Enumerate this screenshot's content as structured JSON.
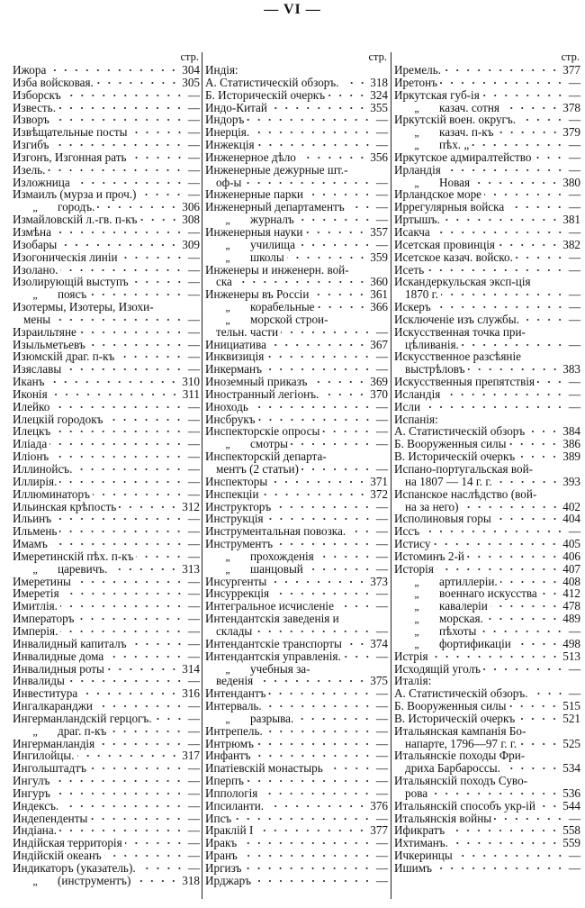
{
  "page_title": "— VI —",
  "page_header_label": "стр.",
  "columns": [
    [
      {
        "t": "Ижора",
        "p": "304"
      },
      {
        "t": "Изба войсковая.",
        "p": "305"
      },
      {
        "t": "Изборскъ",
        "p": "—"
      },
      {
        "t": "Известь.",
        "p": "—"
      },
      {
        "t": "Изворъ",
        "p": "—"
      },
      {
        "t": "Извѣщательные посты",
        "p": "—"
      },
      {
        "t": "Изгибъ",
        "p": "—"
      },
      {
        "t": "Изгонъ, Изгонная рать",
        "p": "—"
      },
      {
        "t": "Изель.",
        "p": "—"
      },
      {
        "t": "Изложница",
        "p": "—"
      },
      {
        "t": "Измаилъ (мурза и проч.)",
        "p": "—"
      },
      {
        "t": "городъ.",
        "p": "306",
        "d": "„"
      },
      {
        "t": "Измайловскій л.-гв. п-къ",
        "p": "308"
      },
      {
        "t": "Измѣна",
        "p": "—"
      },
      {
        "t": "Изобары",
        "p": "309"
      },
      {
        "t": "Изогоническія линіи",
        "p": "—"
      },
      {
        "t": "Изолано.",
        "p": "—"
      },
      {
        "t": "Изолирующій выступъ",
        "p": "—"
      },
      {
        "t": "поясъ",
        "p": "—",
        "d": "„"
      },
      {
        "t": "Изотермы, Изотеры, Изохи-"
      },
      {
        "t": "мены",
        "p": "—",
        "c": true
      },
      {
        "t": "Израильтяне",
        "p": "—"
      },
      {
        "t": "Изыльметьевъ",
        "p": "—"
      },
      {
        "t": "Изюмскій драг. п-къ",
        "p": "—"
      },
      {
        "t": "Изяславы",
        "p": "—"
      },
      {
        "t": "Иканъ",
        "p": "310"
      },
      {
        "t": "Иконія",
        "p": "311"
      },
      {
        "t": "Илейко",
        "p": "—"
      },
      {
        "t": "Илецкій городокъ",
        "p": "—"
      },
      {
        "t": "Илецкъ",
        "p": "—"
      },
      {
        "t": "Иліада",
        "p": "—"
      },
      {
        "t": "Иліонъ",
        "p": "—"
      },
      {
        "t": "Иллинойсъ.",
        "p": "—"
      },
      {
        "t": "Иллирія.",
        "p": "—"
      },
      {
        "t": "Иллюминаторъ",
        "p": "—"
      },
      {
        "t": "Ильинская крѣпость",
        "p": "312"
      },
      {
        "t": "Ильинъ",
        "p": "—"
      },
      {
        "t": "Ильмень",
        "p": "—"
      },
      {
        "t": "Имамъ",
        "p": "—"
      },
      {
        "t": "Имеретинскій пѣх. п-къ",
        "p": "—"
      },
      {
        "t": "царевичъ.",
        "p": "313",
        "d": "„"
      },
      {
        "t": "Имеретины",
        "p": "—"
      },
      {
        "t": "Имеретія",
        "p": "—"
      },
      {
        "t": "Имитлія.",
        "p": "—"
      },
      {
        "t": "Императоръ",
        "p": "—"
      },
      {
        "t": "Имперія.",
        "p": "—"
      },
      {
        "t": "Инвалидный капиталъ",
        "p": "—"
      },
      {
        "t": "Инвалидные дома",
        "p": "—"
      },
      {
        "t": "Инвалидныя роты",
        "p": "314"
      },
      {
        "t": "Инвалиды",
        "p": "—"
      },
      {
        "t": "Инвеститура",
        "p": "316"
      },
      {
        "t": "Ингалкаранджи",
        "p": "—"
      },
      {
        "t": "Ингерманландскій герцогъ.",
        "p": "—"
      },
      {
        "t": "драг. п-къ",
        "p": "—",
        "d": "„"
      },
      {
        "t": "Ингерманландія",
        "p": "—"
      },
      {
        "t": "Ингилойцы.",
        "p": "317"
      },
      {
        "t": "Ингольштадтъ",
        "p": "—"
      },
      {
        "t": "Ингулъ",
        "p": "—"
      },
      {
        "t": "Ингуръ",
        "p": "—"
      },
      {
        "t": "Индексъ.",
        "p": "—"
      },
      {
        "t": "Индепенденты",
        "p": "—"
      },
      {
        "t": "Индіана.",
        "p": "—"
      },
      {
        "t": "Индійская территорія",
        "p": "—"
      },
      {
        "t": "Индійскій океанъ",
        "p": "—"
      },
      {
        "t": "Индикаторъ (указатель).",
        "p": "—"
      },
      {
        "t": "(инструментъ)",
        "p": "318",
        "d": "„"
      }
    ],
    [
      {
        "t": "Индія:"
      },
      {
        "t": "А. Статистическій обзоръ.",
        "p": "318"
      },
      {
        "t": "Б. Историческій очеркъ",
        "p": "324"
      },
      {
        "t": "Индо-Китай",
        "p": "355"
      },
      {
        "t": "Индоръ",
        "p": "—"
      },
      {
        "t": "Инерція.",
        "p": "—"
      },
      {
        "t": "Инжекція",
        "p": "—"
      },
      {
        "t": "Инженерное дѣло",
        "p": "356"
      },
      {
        "t": "Инженерные дежурные шт.-"
      },
      {
        "t": "оф-ы",
        "p": "—",
        "c": true
      },
      {
        "t": "Инженерные парки",
        "p": "—"
      },
      {
        "t": "Инженерный департаментъ",
        "p": "—"
      },
      {
        "t": "журналъ",
        "p": "—",
        "d": "„"
      },
      {
        "t": "Инженерныя науки",
        "p": "357"
      },
      {
        "t": "училища",
        "p": "—",
        "d": "„"
      },
      {
        "t": "школы",
        "p": "359",
        "d": "„"
      },
      {
        "t": "Инженеры и инженерн. вой-"
      },
      {
        "t": "ска",
        "p": "360",
        "c": true
      },
      {
        "t": "Инженеры въ Россіи",
        "p": "361"
      },
      {
        "t": "корабельные",
        "p": "366",
        "d": "„"
      },
      {
        "t": "морской строи-",
        "d": "„"
      },
      {
        "t": "тельн. части",
        "p": "—",
        "c": true
      },
      {
        "t": "Инициатива",
        "p": "367"
      },
      {
        "t": "Инквизиція",
        "p": "—"
      },
      {
        "t": "Инкерманъ",
        "p": "—"
      },
      {
        "t": "Иноземный приказъ",
        "p": "369"
      },
      {
        "t": "Иностранный легіонъ.",
        "p": "370"
      },
      {
        "t": "Иноходь",
        "p": "—"
      },
      {
        "t": "Инсбрукъ",
        "p": "—"
      },
      {
        "t": "Инспекторскіе опросы",
        "p": "—"
      },
      {
        "t": "смотры",
        "p": "—",
        "d": "„"
      },
      {
        "t": "Инспекторскій департа-"
      },
      {
        "t": "ментъ (2 статьи)",
        "p": "—",
        "c": true
      },
      {
        "t": "Инспекторы",
        "p": "371"
      },
      {
        "t": "Инспекціи",
        "p": "372"
      },
      {
        "t": "Инструкторъ",
        "p": "—"
      },
      {
        "t": "Инструкція",
        "p": "—"
      },
      {
        "t": "Инструментальная повозка.",
        "p": "—"
      },
      {
        "t": "Инструментъ",
        "p": "—"
      },
      {
        "t": "прохожденія",
        "p": "—",
        "d": "„"
      },
      {
        "t": "шанцовый",
        "p": "—",
        "d": "„"
      },
      {
        "t": "Инсургенты",
        "p": "373"
      },
      {
        "t": "Инсуррекція",
        "p": "—"
      },
      {
        "t": "Интегральное исчисленіе",
        "p": "—"
      },
      {
        "t": "Интендантскія заведенія и"
      },
      {
        "t": "склады",
        "p": "—",
        "c": true
      },
      {
        "t": "Интендантскіе транспорты",
        "p": "374"
      },
      {
        "t": "Интендантскія управленія.",
        "p": "—"
      },
      {
        "t": "учебныя за-",
        "d": "„"
      },
      {
        "t": "веденія",
        "p": "375",
        "c": true
      },
      {
        "t": "Интендантъ",
        "p": "—"
      },
      {
        "t": "Интерваль.",
        "p": "—"
      },
      {
        "t": "разрыва.",
        "p": "—",
        "d": "„"
      },
      {
        "t": "Интрепель.",
        "p": "—"
      },
      {
        "t": "Интрюмъ",
        "p": "—"
      },
      {
        "t": "Инфантъ",
        "p": "—"
      },
      {
        "t": "Ипатіевскій монастырь",
        "p": "—"
      },
      {
        "t": "Иперпъ",
        "p": "—"
      },
      {
        "t": "Иппологія",
        "p": "—"
      },
      {
        "t": "Ипсиланти.",
        "p": "376"
      },
      {
        "t": "Ипсъ",
        "p": "—"
      },
      {
        "t": "Ираклій I",
        "p": "377"
      },
      {
        "t": "Иракъ",
        "p": "—"
      },
      {
        "t": "Иранъ",
        "p": "—"
      },
      {
        "t": "Иргизъ",
        "p": "—"
      },
      {
        "t": "Ирджаръ",
        "p": "—"
      }
    ],
    [
      {
        "t": "Иремель.",
        "p": "377"
      },
      {
        "t": "Иретонъ",
        "p": "—"
      },
      {
        "t": "Иркутская губ-ія",
        "p": "—"
      },
      {
        "t": "казач. сотня",
        "p": "378",
        "d": "„"
      },
      {
        "t": "Иркутскій воен. округъ.",
        "p": "—"
      },
      {
        "t": "казач. п-къ",
        "p": "379",
        "d": "„"
      },
      {
        "t": "пѣх.   „",
        "p": "—",
        "d": "„"
      },
      {
        "t": "Иркутское адмиралтейство",
        "p": "—"
      },
      {
        "t": "Ирландія",
        "p": "—"
      },
      {
        "t": "Новая",
        "p": "380",
        "d": "„"
      },
      {
        "t": "Ирландское море",
        "p": "—"
      },
      {
        "t": "Иррегулярныя войска",
        "p": "—"
      },
      {
        "t": "Иртышъ.",
        "p": "381"
      },
      {
        "t": "Исакча",
        "p": "—"
      },
      {
        "t": "Исетская провинція",
        "p": "382"
      },
      {
        "t": "Исетское казач. войско.",
        "p": "—"
      },
      {
        "t": "Исеть",
        "p": "—"
      },
      {
        "t": "Искандеркульская эксп-ція"
      },
      {
        "t": "1870 г.",
        "p": "—",
        "c": true
      },
      {
        "t": "Искеръ",
        "p": "—"
      },
      {
        "t": "Исключеніе изъ службы.",
        "p": "—"
      },
      {
        "t": "Искусственная точка при-"
      },
      {
        "t": "цѣливанія.",
        "p": "—",
        "c": true
      },
      {
        "t": "Искусственное разсѣяніе"
      },
      {
        "t": "выстрѣловъ",
        "p": "383",
        "c": true
      },
      {
        "t": "Искусственныя препятствія",
        "p": "—"
      },
      {
        "t": "Исландія",
        "p": "—"
      },
      {
        "t": "Исли",
        "p": "—"
      },
      {
        "t": "Испанія:"
      },
      {
        "t": "А. Статистическій обзоръ",
        "p": "384"
      },
      {
        "t": "Б. Вооруженныя силы",
        "p": "386"
      },
      {
        "t": "В. Историческій очеркъ",
        "p": "389"
      },
      {
        "t": "Испано-португальская вой-"
      },
      {
        "t": "на 1807 — 14 г. г.",
        "p": "393",
        "c": true
      },
      {
        "t": "Испанское наслѣдство (вой-"
      },
      {
        "t": "на за него)",
        "p": "402",
        "c": true
      },
      {
        "t": "Исполиновыя горы",
        "p": "404"
      },
      {
        "t": "Иссъ",
        "p": "—"
      },
      {
        "t": "Истису",
        "p": "405"
      },
      {
        "t": "Истоминъ 2-й",
        "p": "406"
      },
      {
        "t": "Исторія",
        "p": "407"
      },
      {
        "t": "артиллеріи.",
        "p": "408",
        "d": "„"
      },
      {
        "t": "военнаго искусства",
        "p": "412",
        "d": "„"
      },
      {
        "t": "кавалеріи",
        "p": "478",
        "d": "„"
      },
      {
        "t": "морская.",
        "p": "489",
        "d": "„"
      },
      {
        "t": "пѣхоты",
        "p": "—",
        "d": "„"
      },
      {
        "t": "фортификаціи",
        "p": "498",
        "d": "„"
      },
      {
        "t": "Истрія",
        "p": "513"
      },
      {
        "t": "Исходящій уголъ",
        "p": "—"
      },
      {
        "t": "Италія:"
      },
      {
        "t": "А. Статистическій обзоръ.",
        "p": "—"
      },
      {
        "t": "Б. Вооруженныя силы",
        "p": "515"
      },
      {
        "t": "В. Историческій очеркъ",
        "p": "521"
      },
      {
        "t": "Итальянская кампанія Бо-"
      },
      {
        "t": "напарте, 1796—97 г. г.",
        "p": "525",
        "c": true
      },
      {
        "t": "Итальянскіе походы Фри-"
      },
      {
        "t": "дриха Барбароссы.",
        "p": "534",
        "c": true
      },
      {
        "t": "Итальянскій походъ Суво-"
      },
      {
        "t": "рова",
        "p": "536",
        "c": true
      },
      {
        "t": "Итальянскій способъ укр-ій",
        "p": "544"
      },
      {
        "t": "Итальянскія войны",
        "p": "—"
      },
      {
        "t": "Ификратъ",
        "p": "558"
      },
      {
        "t": "Ихтиманъ.",
        "p": "559"
      },
      {
        "t": "Ичкеринцы",
        "p": "—"
      },
      {
        "t": "Ишимъ",
        "p": "—"
      }
    ]
  ]
}
